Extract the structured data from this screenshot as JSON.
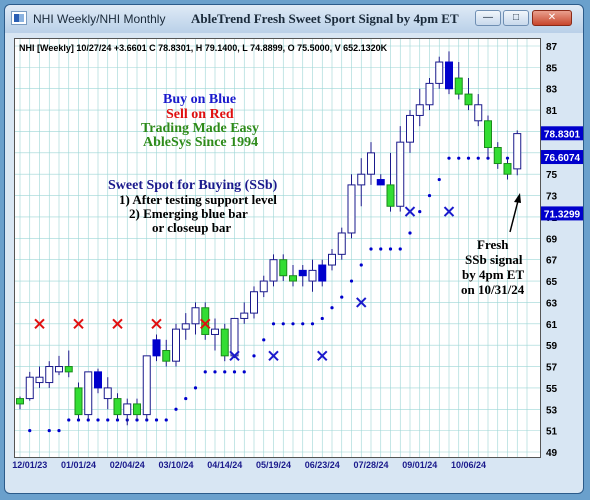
{
  "window": {
    "app_title": "NHI Weekly/NHI Monthly",
    "main_title": "AbleTrend Fresh Sweet Sport Signal by 4pm ET",
    "buttons": [
      "minimize",
      "maximize",
      "close"
    ]
  },
  "info_line": "NHI [Weekly] 10/27/24 +3.6601 C 78.8301, H 79.1400, L 74.8899, O 75.5000, V 652.1320K",
  "legend": {
    "buy": "Buy on Blue",
    "sell": "Sell on Red",
    "tagline": "Trading Made Easy",
    "since": "AbleSys Since 1994"
  },
  "sweet_spot": {
    "heading": "Sweet Spot for Buying (SSb)",
    "rule1": "1) After testing support level",
    "rule2": "2) Emerging blue bar",
    "rule3": "or closeup bar"
  },
  "annotation": {
    "line1": "Fresh",
    "line2": "SSb signal",
    "line3": "by 4pm ET",
    "line4": "on 10/31/24"
  },
  "price_tags": [
    {
      "label": "78.8301",
      "value": 78.8301,
      "bg": "#0000cc",
      "fg": "#ffffff"
    },
    {
      "label": "76.6074",
      "value": 76.6074,
      "bg": "#0000cc",
      "fg": "#ffffff"
    },
    {
      "label": "71.3299",
      "value": 71.3299,
      "bg": "#0000cc",
      "fg": "#ffffff"
    }
  ],
  "colors": {
    "buy_text": "#1a1acc",
    "sell_text": "#e01010",
    "green_text": "#2e8b1a",
    "blue_bar": "#0000cc",
    "green_bar": "#33dd33",
    "red_x": "#e01010",
    "blue_x": "#1a1acc",
    "dots": "#0000cc",
    "grid": "#9cd6d6"
  },
  "chart_data": {
    "type": "candlestick",
    "ylim": [
      49,
      88
    ],
    "yticks": [
      49,
      51,
      53,
      55,
      57,
      59,
      61,
      63,
      65,
      67,
      69,
      71,
      73,
      75,
      77,
      79,
      81,
      83,
      85,
      87
    ],
    "xticks": [
      "12/01/23",
      "01/01/24",
      "02/04/24",
      "03/10/24",
      "04/14/24",
      "05/19/24",
      "06/23/24",
      "07/28/24",
      "09/01/24",
      "10/06/24"
    ],
    "xtick_index": [
      1,
      6,
      11,
      16,
      21,
      26,
      31,
      36,
      41,
      46
    ],
    "bars": [
      {
        "o": 53.5,
        "h": 54.2,
        "l": 53.0,
        "c": 54.0,
        "k": "g"
      },
      {
        "o": 54.0,
        "h": 56.5,
        "l": 53.8,
        "c": 56.0,
        "k": "h"
      },
      {
        "o": 56.0,
        "h": 57.0,
        "l": 55.0,
        "c": 55.5,
        "k": "h"
      },
      {
        "o": 55.5,
        "h": 57.5,
        "l": 55.0,
        "c": 57.0,
        "k": "h"
      },
      {
        "o": 57.0,
        "h": 58.0,
        "l": 56.2,
        "c": 56.5,
        "k": "h"
      },
      {
        "o": 57.0,
        "h": 58.5,
        "l": 56.0,
        "c": 56.5,
        "k": "g"
      },
      {
        "o": 55.0,
        "h": 55.5,
        "l": 52.0,
        "c": 52.5,
        "k": "g"
      },
      {
        "o": 52.5,
        "h": 56.5,
        "l": 52.0,
        "c": 56.5,
        "k": "h"
      },
      {
        "o": 56.5,
        "h": 56.8,
        "l": 54.5,
        "c": 55.0,
        "k": "b"
      },
      {
        "o": 55.0,
        "h": 56.0,
        "l": 53.0,
        "c": 54.0,
        "k": "h"
      },
      {
        "o": 54.0,
        "h": 54.5,
        "l": 52.0,
        "c": 52.5,
        "k": "g"
      },
      {
        "o": 52.5,
        "h": 54.0,
        "l": 51.5,
        "c": 53.5,
        "k": "h"
      },
      {
        "o": 53.5,
        "h": 54.0,
        "l": 52.0,
        "c": 52.5,
        "k": "g"
      },
      {
        "o": 52.5,
        "h": 58.0,
        "l": 52.0,
        "c": 58.0,
        "k": "h"
      },
      {
        "o": 58.0,
        "h": 60.0,
        "l": 57.5,
        "c": 59.5,
        "k": "b"
      },
      {
        "o": 58.5,
        "h": 59.5,
        "l": 57.0,
        "c": 57.5,
        "k": "g"
      },
      {
        "o": 57.5,
        "h": 61.0,
        "l": 57.0,
        "c": 60.5,
        "k": "h"
      },
      {
        "o": 60.5,
        "h": 62.0,
        "l": 59.5,
        "c": 61.0,
        "k": "h"
      },
      {
        "o": 61.0,
        "h": 63.0,
        "l": 60.0,
        "c": 62.5,
        "k": "h"
      },
      {
        "o": 62.5,
        "h": 63.0,
        "l": 59.5,
        "c": 60.0,
        "k": "g"
      },
      {
        "o": 60.0,
        "h": 61.5,
        "l": 58.5,
        "c": 60.5,
        "k": "h"
      },
      {
        "o": 60.5,
        "h": 61.0,
        "l": 57.5,
        "c": 58.0,
        "k": "g"
      },
      {
        "o": 58.0,
        "h": 61.5,
        "l": 57.8,
        "c": 61.5,
        "k": "h"
      },
      {
        "o": 61.5,
        "h": 63.0,
        "l": 61.0,
        "c": 62.0,
        "k": "h"
      },
      {
        "o": 62.0,
        "h": 64.5,
        "l": 61.5,
        "c": 64.0,
        "k": "h"
      },
      {
        "o": 64.0,
        "h": 65.5,
        "l": 63.5,
        "c": 65.0,
        "k": "h"
      },
      {
        "o": 65.0,
        "h": 67.5,
        "l": 64.5,
        "c": 67.0,
        "k": "h"
      },
      {
        "o": 67.0,
        "h": 67.5,
        "l": 65.0,
        "c": 65.5,
        "k": "g"
      },
      {
        "o": 65.5,
        "h": 66.5,
        "l": 64.5,
        "c": 65.0,
        "k": "g"
      },
      {
        "o": 65.5,
        "h": 66.5,
        "l": 64.5,
        "c": 66.0,
        "k": "b"
      },
      {
        "o": 66.0,
        "h": 67.0,
        "l": 64.0,
        "c": 65.0,
        "k": "h"
      },
      {
        "o": 65.0,
        "h": 67.0,
        "l": 64.5,
        "c": 66.5,
        "k": "b"
      },
      {
        "o": 66.5,
        "h": 68.0,
        "l": 66.0,
        "c": 67.5,
        "k": "h"
      },
      {
        "o": 67.5,
        "h": 70.0,
        "l": 67.0,
        "c": 69.5,
        "k": "h"
      },
      {
        "o": 69.5,
        "h": 75.0,
        "l": 69.0,
        "c": 74.0,
        "k": "h"
      },
      {
        "o": 74.0,
        "h": 76.5,
        "l": 72.0,
        "c": 75.0,
        "k": "h"
      },
      {
        "o": 75.0,
        "h": 78.0,
        "l": 74.0,
        "c": 77.0,
        "k": "h"
      },
      {
        "o": 74.5,
        "h": 75.0,
        "l": 74.0,
        "c": 74.0,
        "k": "b"
      },
      {
        "o": 74.0,
        "h": 77.0,
        "l": 71.5,
        "c": 72.0,
        "k": "g"
      },
      {
        "o": 72.0,
        "h": 79.5,
        "l": 71.5,
        "c": 78.0,
        "k": "h"
      },
      {
        "o": 78.0,
        "h": 81.0,
        "l": 77.0,
        "c": 80.5,
        "k": "h"
      },
      {
        "o": 80.5,
        "h": 83.0,
        "l": 79.5,
        "c": 81.5,
        "k": "h"
      },
      {
        "o": 81.5,
        "h": 84.0,
        "l": 81.0,
        "c": 83.5,
        "k": "h"
      },
      {
        "o": 83.5,
        "h": 86.0,
        "l": 83.0,
        "c": 85.5,
        "k": "h"
      },
      {
        "o": 85.5,
        "h": 86.5,
        "l": 82.5,
        "c": 83.0,
        "k": "b"
      },
      {
        "o": 84.0,
        "h": 85.5,
        "l": 82.0,
        "c": 82.5,
        "k": "g"
      },
      {
        "o": 82.5,
        "h": 84.0,
        "l": 81.0,
        "c": 81.5,
        "k": "g"
      },
      {
        "o": 81.5,
        "h": 82.5,
        "l": 79.5,
        "c": 80.0,
        "k": "h"
      },
      {
        "o": 80.0,
        "h": 80.5,
        "l": 76.5,
        "c": 77.5,
        "k": "g"
      },
      {
        "o": 77.5,
        "h": 78.0,
        "l": 75.5,
        "c": 76.0,
        "k": "g"
      },
      {
        "o": 76.0,
        "h": 76.5,
        "l": 74.5,
        "c": 75.0,
        "k": "g"
      },
      {
        "o": 75.5,
        "h": 79.1,
        "l": 74.9,
        "c": 78.8,
        "k": "h"
      }
    ],
    "dots": [
      {
        "i": 1,
        "v": 51.0
      },
      {
        "i": 3,
        "v": 51.0
      },
      {
        "i": 4,
        "v": 51.0
      },
      {
        "i": 5,
        "v": 52.0
      },
      {
        "i": 6,
        "v": 52.0
      },
      {
        "i": 7,
        "v": 52.0
      },
      {
        "i": 8,
        "v": 52.0
      },
      {
        "i": 9,
        "v": 52.0
      },
      {
        "i": 10,
        "v": 52.0
      },
      {
        "i": 11,
        "v": 52.0
      },
      {
        "i": 12,
        "v": 52.0
      },
      {
        "i": 13,
        "v": 52.0
      },
      {
        "i": 14,
        "v": 52.0
      },
      {
        "i": 15,
        "v": 52.0
      },
      {
        "i": 16,
        "v": 53.0
      },
      {
        "i": 17,
        "v": 54.0
      },
      {
        "i": 18,
        "v": 55.0
      },
      {
        "i": 19,
        "v": 56.5
      },
      {
        "i": 20,
        "v": 56.5
      },
      {
        "i": 21,
        "v": 56.5
      },
      {
        "i": 22,
        "v": 56.5
      },
      {
        "i": 23,
        "v": 56.5
      },
      {
        "i": 24,
        "v": 58.0
      },
      {
        "i": 25,
        "v": 59.5
      },
      {
        "i": 26,
        "v": 61.0
      },
      {
        "i": 27,
        "v": 61.0
      },
      {
        "i": 28,
        "v": 61.0
      },
      {
        "i": 29,
        "v": 61.0
      },
      {
        "i": 30,
        "v": 61.0
      },
      {
        "i": 31,
        "v": 61.5
      },
      {
        "i": 32,
        "v": 62.5
      },
      {
        "i": 33,
        "v": 63.5
      },
      {
        "i": 34,
        "v": 65.0
      },
      {
        "i": 35,
        "v": 66.5
      },
      {
        "i": 36,
        "v": 68.0
      },
      {
        "i": 37,
        "v": 68.0
      },
      {
        "i": 38,
        "v": 68.0
      },
      {
        "i": 39,
        "v": 68.0
      },
      {
        "i": 40,
        "v": 69.5
      },
      {
        "i": 41,
        "v": 71.5
      },
      {
        "i": 42,
        "v": 73.0
      },
      {
        "i": 43,
        "v": 74.5
      },
      {
        "i": 44,
        "v": 76.5
      },
      {
        "i": 45,
        "v": 76.5
      },
      {
        "i": 46,
        "v": 76.5
      },
      {
        "i": 47,
        "v": 76.5
      },
      {
        "i": 48,
        "v": 76.5
      },
      {
        "i": 49,
        "v": 76.5
      },
      {
        "i": 50,
        "v": 76.5
      }
    ],
    "red_x": [
      {
        "i": 2,
        "v": 61.0
      },
      {
        "i": 6,
        "v": 61.0
      },
      {
        "i": 10,
        "v": 61.0
      },
      {
        "i": 14,
        "v": 61.0
      },
      {
        "i": 19,
        "v": 61.0
      }
    ],
    "blue_x": [
      {
        "i": 22,
        "v": 58.0
      },
      {
        "i": 26,
        "v": 58.0
      },
      {
        "i": 31,
        "v": 58.0
      },
      {
        "i": 35,
        "v": 63.0
      },
      {
        "i": 40,
        "v": 71.5
      },
      {
        "i": 44,
        "v": 71.5
      }
    ]
  }
}
